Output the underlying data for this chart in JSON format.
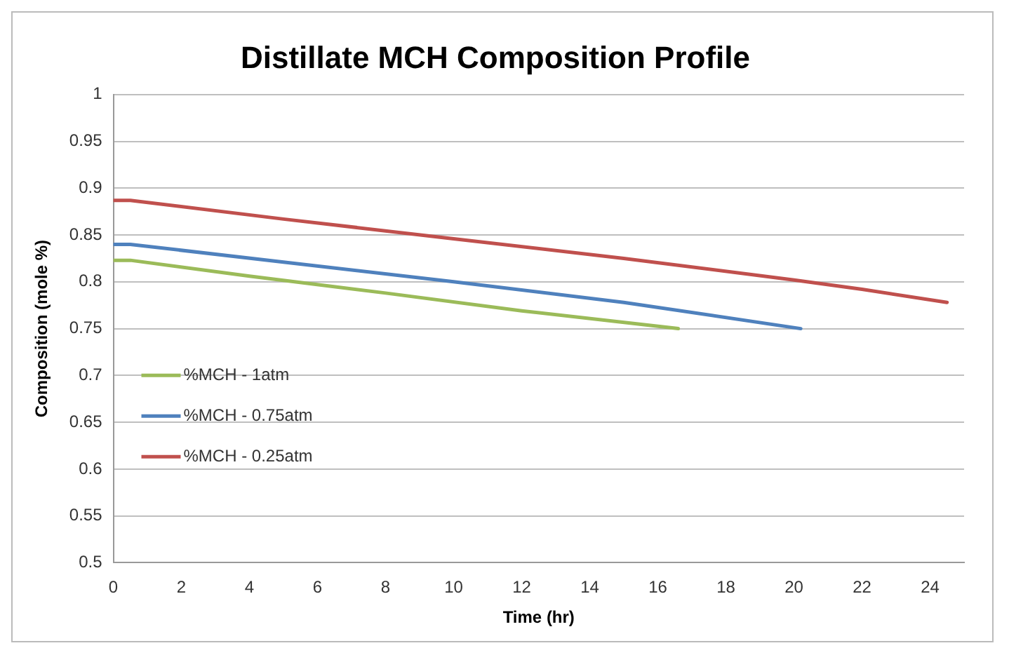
{
  "chart_data": {
    "type": "line",
    "title": "Distillate MCH Composition Profile",
    "xlabel": "Time (hr)",
    "ylabel": "Composition (mole %)",
    "series": [
      {
        "name": "%MCH - 1atm",
        "color": "#9bbb59",
        "x": [
          0,
          0.5,
          4,
          8,
          12,
          16.6
        ],
        "values": [
          0.823,
          0.823,
          0.806,
          0.788,
          0.769,
          0.75
        ]
      },
      {
        "name": "%MCH - 0.75atm",
        "color": "#4f81bd",
        "x": [
          0,
          0.5,
          5,
          10,
          15,
          20.2
        ],
        "values": [
          0.84,
          0.84,
          0.821,
          0.8,
          0.778,
          0.75
        ]
      },
      {
        "name": "%MCH - 0.25atm",
        "color": "#c0504d",
        "x": [
          0,
          0.5,
          5,
          10,
          15,
          20,
          22,
          24.5
        ],
        "values": [
          0.887,
          0.887,
          0.867,
          0.846,
          0.825,
          0.802,
          0.792,
          0.778
        ]
      }
    ],
    "xlim": [
      0,
      25
    ],
    "xticks": [
      0,
      2,
      4,
      6,
      8,
      10,
      12,
      14,
      16,
      18,
      20,
      22,
      24
    ],
    "ylim": [
      0.5,
      1
    ],
    "yticks": [
      0.5,
      0.55,
      0.6,
      0.65,
      0.7,
      0.75,
      0.8,
      0.85,
      0.9,
      0.95,
      1
    ],
    "grid": "y",
    "legend": "left",
    "marker": "none",
    "line_style": "solid"
  }
}
